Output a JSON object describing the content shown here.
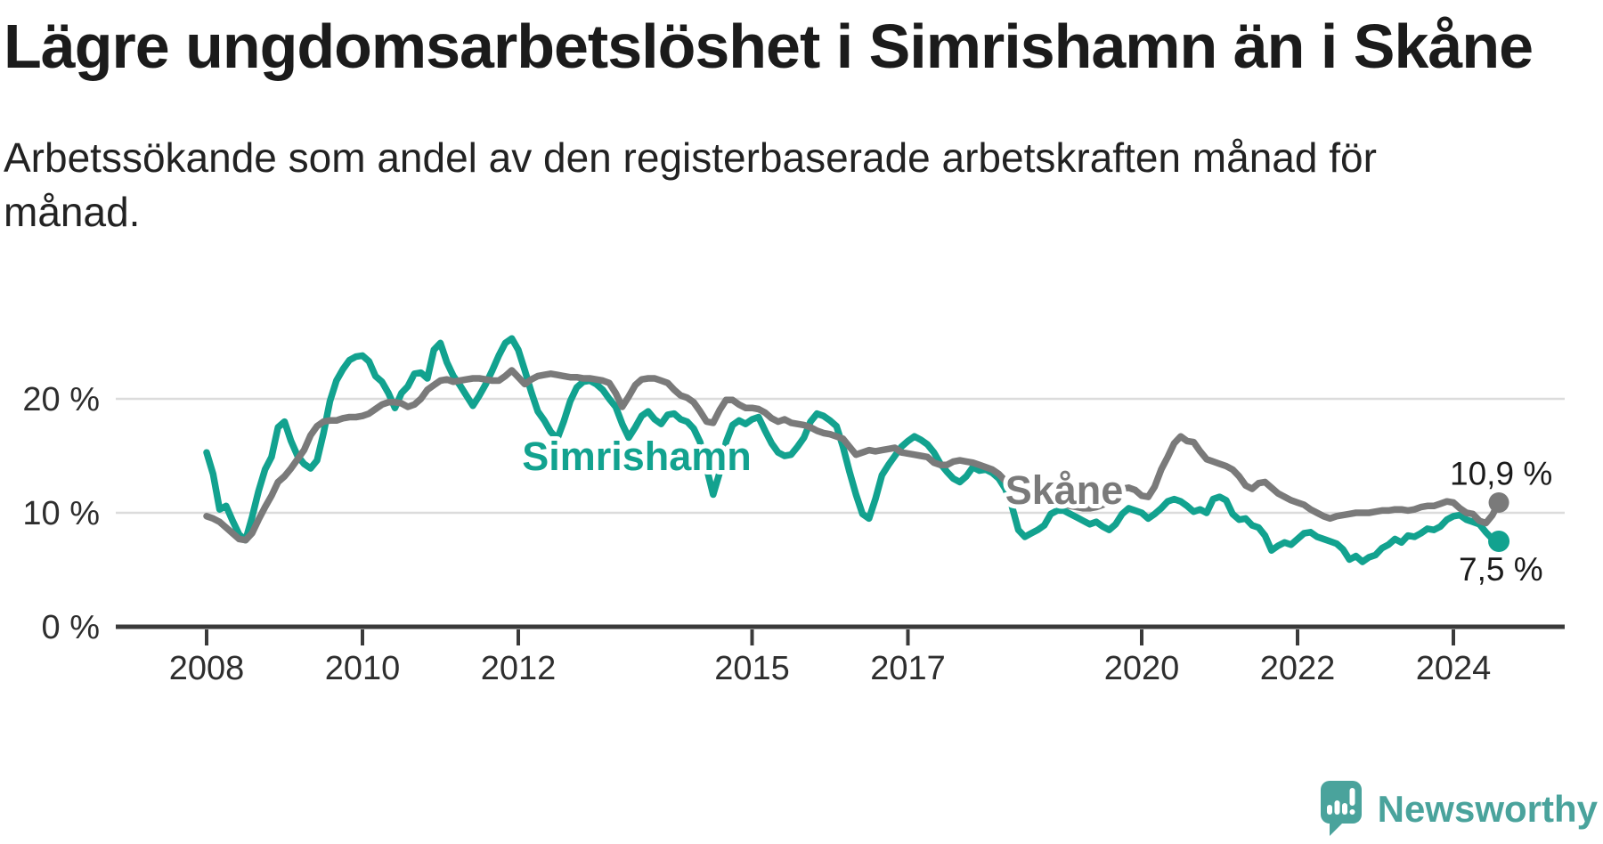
{
  "header": {
    "title": "Lägre ungdomsarbetslöshet i Simrishamn än i Skåne",
    "subtitle_lines": [
      "Arbetssökande som andel av den registerbaserade arbetskraften månad för",
      "månad."
    ]
  },
  "branding": {
    "logo_text": "Newsworthy",
    "logo_icon": "bar-chart-speech-bubble-icon",
    "logo_color": "#4aa39c"
  },
  "chart_data": {
    "type": "line",
    "title": "Lägre ungdomsarbetslöshet i Simrishamn än i Skåne",
    "xlabel": "",
    "ylabel": "",
    "grid": "horizontal",
    "legend_position": "inline-labels",
    "x_range": [
      2008,
      2024.67
    ],
    "ylim": [
      0,
      28
    ],
    "x_ticks": [
      {
        "value": 2008,
        "label": "2008"
      },
      {
        "value": 2010,
        "label": "2010"
      },
      {
        "value": 2012,
        "label": "2012"
      },
      {
        "value": 2015,
        "label": "2015"
      },
      {
        "value": 2017,
        "label": "2017"
      },
      {
        "value": 2020,
        "label": "2020"
      },
      {
        "value": 2022,
        "label": "2022"
      },
      {
        "value": 2024,
        "label": "2024"
      }
    ],
    "y_ticks": [
      {
        "value": 0,
        "label": "0 %"
      },
      {
        "value": 10,
        "label": "10 %"
      },
      {
        "value": 20,
        "label": "20 %"
      }
    ],
    "series": [
      {
        "name": "Simrishamn",
        "color": "#12a28f",
        "start_year": 2008,
        "interval_months": 1,
        "end_label": "7,5 %",
        "values": [
          15.3,
          13.4,
          10.3,
          10.6,
          9.3,
          8.1,
          7.6,
          9.6,
          11.9,
          13.8,
          14.9,
          17.5,
          18.0,
          16.3,
          15.0,
          14.3,
          13.9,
          14.6,
          17.0,
          19.8,
          21.6,
          22.6,
          23.4,
          23.7,
          23.8,
          23.3,
          22.0,
          21.5,
          20.5,
          19.2,
          20.5,
          21.1,
          22.2,
          22.3,
          21.8,
          24.3,
          24.9,
          23.2,
          22.0,
          21.2,
          20.3,
          19.4,
          20.3,
          21.3,
          22.5,
          23.8,
          24.9,
          25.3,
          24.3,
          22.5,
          20.6,
          18.9,
          18.1,
          17.1,
          16.5,
          18.0,
          19.8,
          21.0,
          21.5,
          21.6,
          21.3,
          20.8,
          20.0,
          19.3,
          17.8,
          16.6,
          17.5,
          18.5,
          18.9,
          18.2,
          17.8,
          18.6,
          18.7,
          18.2,
          18.0,
          17.4,
          16.2,
          13.9,
          11.6,
          13.5,
          16.2,
          17.7,
          18.1,
          17.8,
          18.2,
          18.4,
          17.2,
          16.1,
          15.3,
          15.0,
          15.1,
          15.8,
          16.6,
          18.0,
          18.7,
          18.5,
          18.1,
          17.6,
          15.8,
          13.6,
          11.6,
          9.9,
          9.5,
          11.2,
          13.3,
          14.2,
          15.0,
          15.8,
          16.3,
          16.7,
          16.4,
          16.0,
          15.3,
          14.3,
          13.6,
          13.0,
          12.7,
          13.2,
          14.0,
          13.7,
          13.8,
          13.5,
          13.0,
          12.1,
          10.6,
          8.5,
          7.9,
          8.2,
          8.5,
          8.9,
          9.9,
          10.2,
          10.2,
          9.9,
          9.6,
          9.3,
          9.0,
          9.2,
          8.8,
          8.5,
          9.0,
          9.9,
          10.4,
          10.2,
          10.0,
          9.5,
          9.9,
          10.4,
          11.0,
          11.2,
          11.0,
          10.6,
          10.1,
          10.3,
          10.0,
          11.2,
          11.4,
          11.1,
          9.9,
          9.4,
          9.5,
          8.9,
          8.7,
          8.0,
          6.7,
          7.1,
          7.4,
          7.2,
          7.7,
          8.2,
          8.3,
          7.9,
          7.7,
          7.5,
          7.3,
          6.8,
          5.9,
          6.2,
          5.7,
          6.1,
          6.3,
          6.9,
          7.2,
          7.7,
          7.4,
          8.0,
          7.9,
          8.2,
          8.6,
          8.5,
          8.8,
          9.4,
          9.7,
          9.8,
          9.4,
          9.2,
          9.0,
          8.3,
          7.7,
          7.5
        ]
      },
      {
        "name": "Skåne",
        "color": "#7a7a7a",
        "start_year": 2008,
        "interval_months": 1,
        "end_label": "10,9 %",
        "values": [
          9.7,
          9.5,
          9.2,
          8.7,
          8.2,
          7.7,
          7.6,
          8.2,
          9.4,
          10.5,
          11.5,
          12.7,
          13.2,
          13.9,
          14.7,
          15.5,
          16.8,
          17.6,
          18.0,
          18.1,
          18.1,
          18.3,
          18.4,
          18.4,
          18.5,
          18.7,
          19.1,
          19.5,
          19.7,
          19.7,
          19.6,
          19.3,
          19.5,
          20.0,
          20.8,
          21.2,
          21.6,
          21.7,
          21.5,
          21.6,
          21.7,
          21.8,
          21.8,
          21.7,
          21.6,
          21.6,
          22.0,
          22.5,
          21.9,
          21.3,
          21.7,
          22.0,
          22.1,
          22.2,
          22.1,
          22.0,
          21.9,
          21.9,
          21.8,
          21.8,
          21.7,
          21.6,
          21.4,
          20.5,
          19.3,
          20.2,
          21.2,
          21.7,
          21.8,
          21.8,
          21.6,
          21.4,
          20.8,
          20.3,
          20.1,
          19.7,
          18.9,
          18.0,
          17.9,
          19.0,
          19.9,
          19.9,
          19.5,
          19.2,
          19.2,
          19.1,
          18.8,
          18.3,
          18.0,
          18.2,
          17.9,
          17.8,
          17.7,
          17.5,
          17.2,
          17.0,
          16.9,
          16.7,
          16.5,
          15.8,
          15.1,
          15.3,
          15.5,
          15.4,
          15.5,
          15.6,
          15.7,
          15.3,
          15.2,
          15.1,
          15.0,
          14.9,
          14.4,
          14.2,
          14.2,
          14.5,
          14.6,
          14.5,
          14.4,
          14.2,
          14.0,
          13.8,
          13.4,
          12.8,
          12.4,
          12.2,
          12.0,
          11.8,
          11.5,
          11.2,
          11.0,
          10.9,
          10.8,
          10.6,
          10.5,
          10.4,
          10.4,
          10.5,
          10.7,
          11.0,
          11.6,
          12.1,
          12.2,
          12.0,
          11.5,
          11.4,
          12.3,
          13.8,
          14.9,
          16.1,
          16.7,
          16.3,
          16.2,
          15.4,
          14.7,
          14.5,
          14.3,
          14.1,
          13.8,
          13.2,
          12.4,
          12.1,
          12.6,
          12.7,
          12.2,
          11.7,
          11.4,
          11.1,
          10.9,
          10.7,
          10.3,
          10.0,
          9.7,
          9.5,
          9.7,
          9.8,
          9.9,
          10.0,
          10.0,
          10.0,
          10.1,
          10.2,
          10.2,
          10.3,
          10.3,
          10.2,
          10.3,
          10.5,
          10.6,
          10.6,
          10.8,
          11.0,
          10.9,
          10.4,
          10.0,
          9.9,
          9.3,
          9.1,
          9.8,
          10.9
        ]
      }
    ],
    "colors": {
      "axis": "#3a3a3a",
      "grid": "#dcdcdc",
      "tick_text": "#2e2e2e",
      "value_label_text": "#1a1a1a"
    }
  }
}
